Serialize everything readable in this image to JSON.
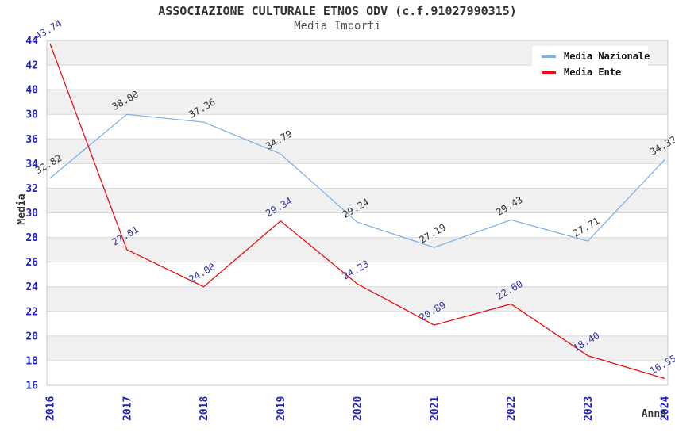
{
  "header": {
    "title": "ASSOCIAZIONE CULTURALE ETNOS ODV (c.f.91027990315)",
    "subtitle": "Media Importi"
  },
  "chart_data": {
    "type": "line",
    "title": "ASSOCIAZIONE CULTURALE ETNOS ODV (c.f.91027990315)",
    "subtitle": "Media Importi",
    "x": [
      2016,
      2017,
      2018,
      2019,
      2020,
      2021,
      2022,
      2023,
      2024
    ],
    "series": [
      {
        "name": "Media Nazionale",
        "color": "#7eb3e8",
        "label_color": "#333333",
        "values": [
          32.82,
          38.0,
          37.36,
          34.79,
          29.24,
          27.19,
          29.43,
          27.71,
          34.32
        ]
      },
      {
        "name": "Media Ente",
        "color": "#e81010",
        "label_color": "#3333aa",
        "values": [
          43.74,
          27.01,
          24.0,
          29.34,
          24.23,
          20.89,
          22.6,
          18.4,
          16.55
        ]
      }
    ],
    "xlabel": "Anno",
    "ylabel": "Media",
    "ylim": [
      16,
      44
    ],
    "yticks": [
      16,
      18,
      20,
      22,
      24,
      26,
      28,
      30,
      32,
      34,
      36,
      38,
      40,
      42,
      44
    ],
    "grid": true,
    "legend_position": "top-right",
    "colors": {
      "tick_label": "#2222cc",
      "axis_title": "#333333",
      "band": "#f0f0f0",
      "gridline": "#d8d8d8",
      "plot_border": "#c8c8c8"
    }
  }
}
